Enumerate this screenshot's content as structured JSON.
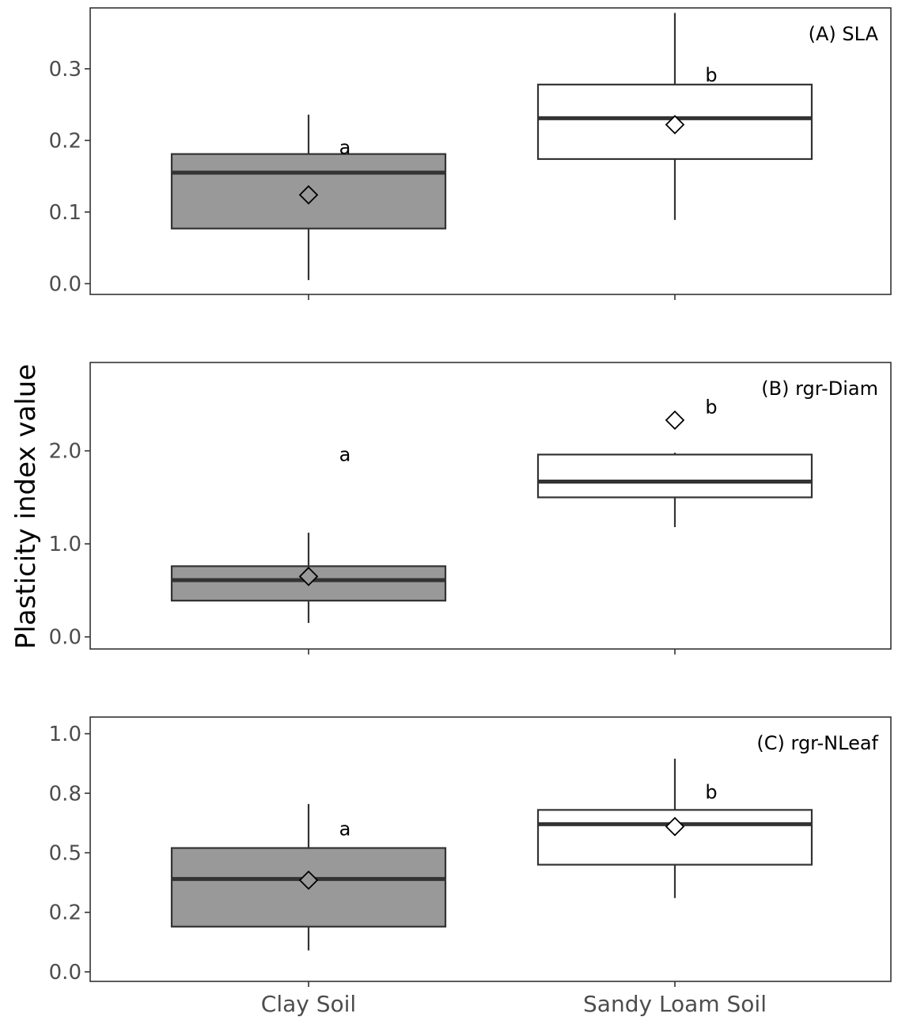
{
  "chart_data": {
    "type": "box",
    "ylabel": "Plasticity index value",
    "categories": [
      "Clay Soil",
      "Sandy Loam Soil"
    ],
    "colors": {
      "Clay Soil": "#999999",
      "Sandy Loam Soil": "#ffffff",
      "stroke": "#333333"
    },
    "grid": false,
    "panels": [
      {
        "title": "(A) SLA",
        "ylim": [
          -0.015,
          0.385
        ],
        "yticks": [
          0.0,
          0.1,
          0.2,
          0.3
        ],
        "ytick_labels": [
          "0.0",
          "0.1",
          "0.2",
          "0.3"
        ],
        "boxes": [
          {
            "category": "Clay Soil",
            "whisker_low": 0.005,
            "q1": 0.077,
            "median": 0.155,
            "q3": 0.181,
            "whisker_high": 0.236,
            "mean": 0.124,
            "letter": "a",
            "letter_y": 0.19
          },
          {
            "category": "Sandy Loam Soil",
            "whisker_low": 0.089,
            "q1": 0.174,
            "median": 0.231,
            "q3": 0.278,
            "whisker_high": 0.378,
            "mean": 0.222,
            "letter": "b",
            "letter_y": 0.291
          }
        ]
      },
      {
        "title": "(B) rgr-Diam",
        "ylim": [
          -0.13,
          2.95
        ],
        "yticks": [
          0.0,
          1.0,
          2.0
        ],
        "ytick_labels": [
          "0.0",
          "1.0",
          "2.0"
        ],
        "boxes": [
          {
            "category": "Clay Soil",
            "whisker_low": 0.15,
            "q1": 0.39,
            "median": 0.61,
            "q3": 0.76,
            "whisker_high": 1.12,
            "mean": 0.65,
            "letter": "a",
            "letter_y": 1.96
          },
          {
            "category": "Sandy Loam Soil",
            "whisker_low": 1.18,
            "q1": 1.5,
            "median": 1.67,
            "q3": 1.96,
            "whisker_high": 1.98,
            "mean": 2.33,
            "letter": "b",
            "letter_y": 2.47
          }
        ]
      },
      {
        "title": "(C) rgr-NLeaf",
        "ylim": [
          -0.04,
          1.07
        ],
        "yticks": [
          0.0,
          0.25,
          0.5,
          0.75,
          1.0
        ],
        "ytick_labels": [
          "0.0",
          "0.2",
          "0.5",
          "0.8",
          "1.0"
        ],
        "boxes": [
          {
            "category": "Clay Soil",
            "whisker_low": 0.09,
            "q1": 0.19,
            "median": 0.39,
            "q3": 0.52,
            "whisker_high": 0.705,
            "mean": 0.385,
            "letter": "a",
            "letter_y": 0.6
          },
          {
            "category": "Sandy Loam Soil",
            "whisker_low": 0.31,
            "q1": 0.45,
            "median": 0.62,
            "q3": 0.68,
            "whisker_high": 0.895,
            "mean": 0.61,
            "letter": "b",
            "letter_y": 0.755
          }
        ]
      }
    ]
  }
}
